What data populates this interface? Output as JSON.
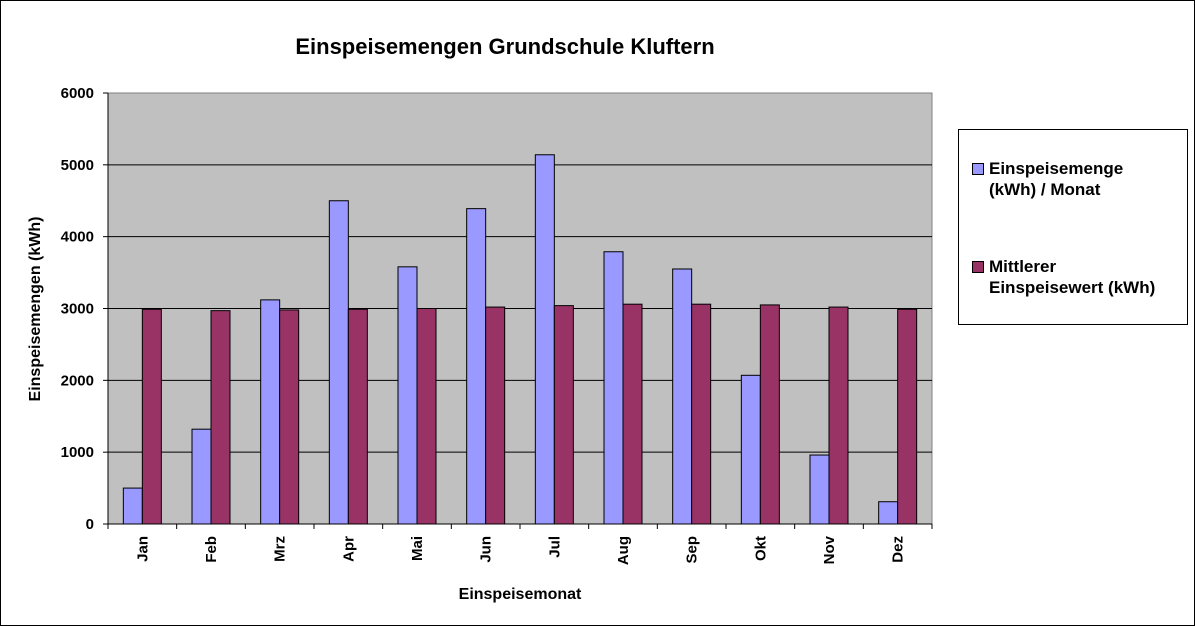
{
  "chart_data": {
    "type": "bar",
    "title": "Einspeisemengen Grundschule Kluftern",
    "xlabel": "Einspeisemonat",
    "ylabel": "Einspeisemengen (kWh)",
    "ylim": [
      0,
      6000
    ],
    "yticks": [
      "0",
      "1000",
      "2000",
      "3000",
      "4000",
      "5000",
      "6000"
    ],
    "grid": true,
    "legend_position": "right",
    "categories": [
      "Jan",
      "Feb",
      "Mrz",
      "Apr",
      "Mai",
      "Jun",
      "Jul",
      "Aug",
      "Sep",
      "Okt",
      "Nov",
      "Dez"
    ],
    "series": [
      {
        "name": "Einspeisemenge (kWh) / Monat",
        "color": "#9999ff",
        "values": [
          500,
          1320,
          3120,
          4500,
          3580,
          4390,
          5140,
          3790,
          3550,
          2070,
          960,
          310
        ]
      },
      {
        "name": "Mittlerer Einspeisewert (kWh)",
        "color": "#993366",
        "values": [
          2990,
          2970,
          2980,
          2990,
          3000,
          3020,
          3040,
          3060,
          3060,
          3050,
          3020,
          2990
        ]
      }
    ],
    "plot_background": "#c0c0c0"
  },
  "legend": {
    "items": [
      {
        "label": "Einspeisemenge\n(kWh) / Monat",
        "color": "#9999ff"
      },
      {
        "label": "Mittlerer\nEinspeisewert (kWh)",
        "color": "#993366"
      }
    ]
  }
}
